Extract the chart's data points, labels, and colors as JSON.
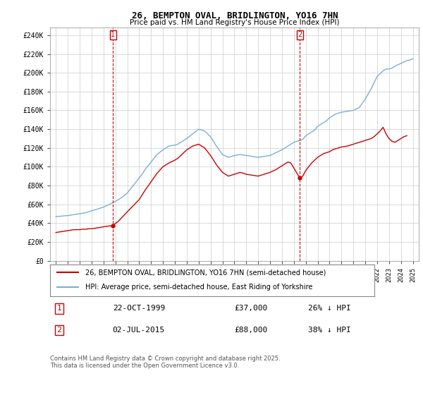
{
  "title": "26, BEMPTON OVAL, BRIDLINGTON, YO16 7HN",
  "subtitle": "Price paid vs. HM Land Registry's House Price Index (HPI)",
  "legend_line1": "26, BEMPTON OVAL, BRIDLINGTON, YO16 7HN (semi-detached house)",
  "legend_line2": "HPI: Average price, semi-detached house, East Riding of Yorkshire",
  "marker1_label": "1",
  "marker1_date": "22-OCT-1999",
  "marker1_price": "£37,000",
  "marker1_hpi": "26% ↓ HPI",
  "marker1_x": 1999.8,
  "marker1_y": 37000,
  "marker2_label": "2",
  "marker2_date": "02-JUL-2015",
  "marker2_price": "£88,000",
  "marker2_hpi": "38% ↓ HPI",
  "marker2_x": 2015.5,
  "marker2_y": 88000,
  "footer": "Contains HM Land Registry data © Crown copyright and database right 2025.\nThis data is licensed under the Open Government Licence v3.0.",
  "red_color": "#cc0000",
  "blue_color": "#7bafd4",
  "background_color": "#ffffff",
  "grid_color": "#cccccc",
  "ylim": [
    0,
    248000
  ],
  "xlim": [
    1994.5,
    2025.5
  ],
  "yticks": [
    0,
    20000,
    40000,
    60000,
    80000,
    100000,
    120000,
    140000,
    160000,
    180000,
    200000,
    220000,
    240000
  ],
  "ytick_labels": [
    "£0",
    "£20K",
    "£40K",
    "£60K",
    "£80K",
    "£100K",
    "£120K",
    "£140K",
    "£160K",
    "£180K",
    "£200K",
    "£220K",
    "£240K"
  ],
  "xticks": [
    1995,
    1996,
    1997,
    1998,
    1999,
    2000,
    2001,
    2002,
    2003,
    2004,
    2005,
    2006,
    2007,
    2008,
    2009,
    2010,
    2011,
    2012,
    2013,
    2014,
    2015,
    2016,
    2017,
    2018,
    2019,
    2020,
    2021,
    2022,
    2023,
    2024,
    2025
  ],
  "hpi_x": [
    1995.0,
    1995.25,
    1995.5,
    1995.75,
    1996.0,
    1996.25,
    1996.5,
    1996.75,
    1997.0,
    1997.25,
    1997.5,
    1997.75,
    1998.0,
    1998.25,
    1998.5,
    1998.75,
    1999.0,
    1999.25,
    1999.5,
    1999.75,
    2000.0,
    2000.25,
    2000.5,
    2000.75,
    2001.0,
    2001.25,
    2001.5,
    2001.75,
    2002.0,
    2002.25,
    2002.5,
    2002.75,
    2003.0,
    2003.25,
    2003.5,
    2003.75,
    2004.0,
    2004.25,
    2004.5,
    2004.75,
    2005.0,
    2005.25,
    2005.5,
    2005.75,
    2006.0,
    2006.25,
    2006.5,
    2006.75,
    2007.0,
    2007.25,
    2007.5,
    2007.75,
    2008.0,
    2008.25,
    2008.5,
    2008.75,
    2009.0,
    2009.25,
    2009.5,
    2009.75,
    2010.0,
    2010.25,
    2010.5,
    2010.75,
    2011.0,
    2011.25,
    2011.5,
    2011.75,
    2012.0,
    2012.25,
    2012.5,
    2012.75,
    2013.0,
    2013.25,
    2013.5,
    2013.75,
    2014.0,
    2014.25,
    2014.5,
    2014.75,
    2015.0,
    2015.25,
    2015.5,
    2015.75,
    2016.0,
    2016.25,
    2016.5,
    2016.75,
    2017.0,
    2017.25,
    2017.5,
    2017.75,
    2018.0,
    2018.25,
    2018.5,
    2018.75,
    2019.0,
    2019.25,
    2019.5,
    2019.75,
    2020.0,
    2020.25,
    2020.5,
    2020.75,
    2021.0,
    2021.25,
    2021.5,
    2021.75,
    2022.0,
    2022.25,
    2022.5,
    2022.75,
    2023.0,
    2023.25,
    2023.5,
    2023.75,
    2024.0,
    2024.25,
    2024.5,
    2024.75,
    2025.0
  ],
  "hpi_y": [
    47000,
    47200,
    47500,
    47800,
    48000,
    48500,
    49000,
    49500,
    50000,
    50500,
    51000,
    52000,
    53000,
    54000,
    55000,
    56000,
    57000,
    58500,
    60000,
    61500,
    63000,
    65000,
    67000,
    69500,
    72000,
    76000,
    80000,
    84000,
    88000,
    92000,
    97000,
    101000,
    105000,
    109000,
    113000,
    115500,
    118000,
    120000,
    122000,
    122500,
    123000,
    124000,
    126000,
    128000,
    130000,
    132500,
    135000,
    137500,
    140000,
    139000,
    138000,
    135000,
    132000,
    127000,
    122000,
    117500,
    113000,
    111500,
    110000,
    111000,
    112000,
    112500,
    113000,
    112500,
    112000,
    111500,
    111000,
    110500,
    110000,
    110500,
    111000,
    111500,
    112000,
    113500,
    115000,
    116500,
    118000,
    120000,
    122000,
    124000,
    126000,
    127000,
    128000,
    129000,
    133000,
    135000,
    137000,
    139000,
    143000,
    145000,
    147000,
    149000,
    152000,
    154000,
    156000,
    157000,
    158000,
    158500,
    159000,
    159500,
    160000,
    161500,
    163000,
    167500,
    172000,
    177500,
    183000,
    189500,
    196000,
    199000,
    202000,
    204000,
    204000,
    205000,
    207000,
    208500,
    210000,
    211500,
    213000,
    213500,
    215000
  ],
  "sale_x": [
    1995.0,
    1995.25,
    1995.5,
    1995.75,
    1996.0,
    1996.25,
    1996.5,
    1996.75,
    1997.0,
    1997.25,
    1997.5,
    1997.75,
    1998.0,
    1998.25,
    1998.5,
    1998.75,
    1999.0,
    1999.25,
    1999.5,
    1999.75,
    2000.25,
    2001.0,
    2002.0,
    2002.5,
    2003.0,
    2003.5,
    2004.0,
    2004.5,
    2005.0,
    2005.25,
    2005.5,
    2005.75,
    2006.0,
    2006.25,
    2006.5,
    2006.75,
    2007.0,
    2007.25,
    2007.5,
    2007.75,
    2008.0,
    2008.25,
    2008.5,
    2008.75,
    2009.0,
    2009.25,
    2009.5,
    2009.75,
    2010.0,
    2010.25,
    2010.5,
    2010.75,
    2011.0,
    2011.25,
    2011.5,
    2011.75,
    2012.0,
    2012.25,
    2012.5,
    2012.75,
    2013.0,
    2013.25,
    2013.5,
    2013.75,
    2014.0,
    2014.25,
    2014.5,
    2014.75,
    2015.5,
    2015.75,
    2016.0,
    2016.25,
    2016.5,
    2016.75,
    2017.0,
    2017.25,
    2017.5,
    2017.75,
    2018.0,
    2018.25,
    2018.5,
    2018.75,
    2019.0,
    2019.25,
    2019.5,
    2019.75,
    2020.0,
    2020.25,
    2020.5,
    2020.75,
    2021.0,
    2021.25,
    2021.5,
    2021.75,
    2022.0,
    2022.25,
    2022.5,
    2022.75,
    2023.0,
    2023.25,
    2023.5,
    2023.75,
    2024.0,
    2024.25,
    2024.5
  ],
  "sale_y": [
    30000,
    30500,
    31000,
    31500,
    32000,
    32500,
    33000,
    33000,
    33000,
    33500,
    33500,
    34000,
    34000,
    34500,
    35000,
    35500,
    36000,
    36500,
    37000,
    37000,
    42000,
    52000,
    65000,
    75000,
    84000,
    93000,
    100000,
    104000,
    107000,
    109000,
    112000,
    115000,
    118000,
    120000,
    122000,
    123000,
    124000,
    122000,
    120000,
    116000,
    112000,
    107000,
    102000,
    98000,
    94000,
    92000,
    90000,
    91000,
    92000,
    93000,
    94000,
    93000,
    92000,
    91500,
    91000,
    90500,
    90000,
    91000,
    92000,
    93000,
    94000,
    95500,
    97000,
    99000,
    101000,
    103000,
    105000,
    104000,
    88000,
    90000,
    96000,
    100000,
    104000,
    107000,
    110000,
    112000,
    114000,
    115000,
    116000,
    118000,
    119000,
    120000,
    121000,
    121500,
    122000,
    123000,
    124000,
    125000,
    126000,
    127000,
    128000,
    129000,
    130000,
    132000,
    135000,
    138000,
    142000,
    135000,
    130000,
    127000,
    126000,
    128000,
    130000,
    132000,
    133000
  ]
}
